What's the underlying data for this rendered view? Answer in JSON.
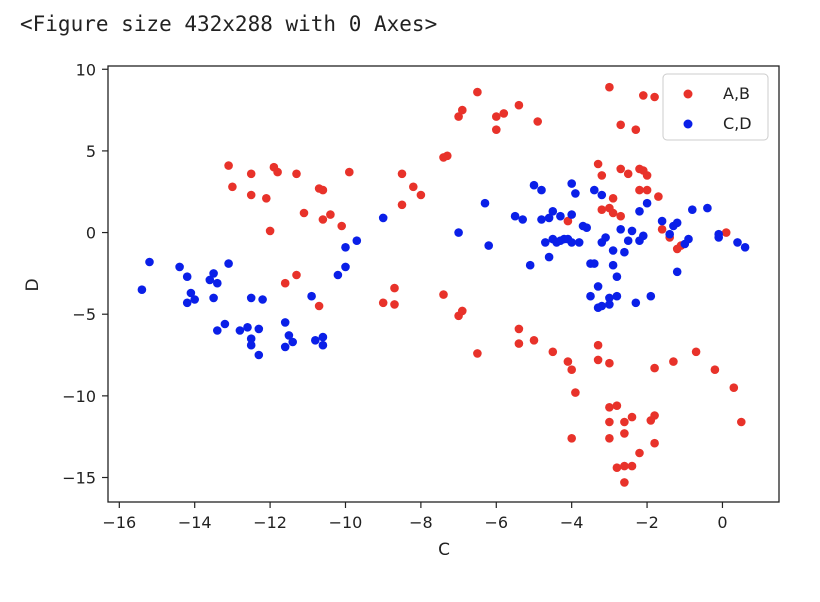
{
  "header_text": "<Figure size 432x288 with 0 Axes>",
  "chart_data": {
    "type": "scatter",
    "xlabel": "C",
    "ylabel": "D",
    "xlim": [
      -16.3,
      1.5
    ],
    "ylim": [
      -16.5,
      10.2
    ],
    "xticks": [
      -16,
      -14,
      -12,
      -10,
      -8,
      -6,
      -4,
      -2,
      0
    ],
    "yticks": [
      10,
      5,
      0,
      -5,
      -10,
      -15
    ],
    "xtick_labels": [
      "−16",
      "−14",
      "−12",
      "−10",
      "−8",
      "−6",
      "−4",
      "−2",
      "0"
    ],
    "ytick_labels": [
      "10",
      "5",
      "0",
      "−5",
      "−10",
      "−15"
    ],
    "grid": false,
    "legend_position": "top-right",
    "series": [
      {
        "name": "A,B",
        "color": "#e8322a",
        "points": [
          [
            -13.1,
            4.1
          ],
          [
            -13.0,
            2.8
          ],
          [
            -12.5,
            3.6
          ],
          [
            -12.5,
            2.3
          ],
          [
            -12.1,
            2.1
          ],
          [
            -12.0,
            0.1
          ],
          [
            -11.9,
            4.0
          ],
          [
            -11.8,
            3.7
          ],
          [
            -11.3,
            3.6
          ],
          [
            -11.1,
            1.2
          ],
          [
            -10.7,
            2.7
          ],
          [
            -10.6,
            2.6
          ],
          [
            -10.6,
            0.8
          ],
          [
            -10.4,
            1.1
          ],
          [
            -10.1,
            0.4
          ],
          [
            -9.9,
            3.7
          ],
          [
            -11.6,
            -3.1
          ],
          [
            -11.3,
            -2.6
          ],
          [
            -10.7,
            -4.5
          ],
          [
            -9.0,
            -4.3
          ],
          [
            -8.7,
            -4.4
          ],
          [
            -8.7,
            -3.4
          ],
          [
            -8.5,
            3.6
          ],
          [
            -8.2,
            2.8
          ],
          [
            -8.0,
            2.3
          ],
          [
            -8.5,
            1.7
          ],
          [
            -7.4,
            4.6
          ],
          [
            -7.3,
            4.7
          ],
          [
            -7.0,
            7.1
          ],
          [
            -6.9,
            7.5
          ],
          [
            -6.5,
            8.6
          ],
          [
            -6.0,
            6.3
          ],
          [
            -6.0,
            7.1
          ],
          [
            -5.8,
            7.3
          ],
          [
            -5.4,
            7.8
          ],
          [
            -4.9,
            6.8
          ],
          [
            -7.4,
            -3.8
          ],
          [
            -7.0,
            -5.1
          ],
          [
            -6.9,
            -4.8
          ],
          [
            -6.5,
            -7.4
          ],
          [
            -5.4,
            -5.9
          ],
          [
            -5.4,
            -6.8
          ],
          [
            -5.0,
            -6.6
          ],
          [
            -4.5,
            -7.3
          ],
          [
            -4.1,
            -7.9
          ],
          [
            -4.0,
            -8.4
          ],
          [
            -3.9,
            -9.8
          ],
          [
            -4.0,
            -12.6
          ],
          [
            -3.3,
            -6.9
          ],
          [
            -3.3,
            -7.8
          ],
          [
            -3.0,
            -8.0
          ],
          [
            -3.0,
            -10.7
          ],
          [
            -3.0,
            -11.6
          ],
          [
            -3.0,
            -12.6
          ],
          [
            -2.8,
            -10.6
          ],
          [
            -2.6,
            -11.6
          ],
          [
            -2.6,
            -12.3
          ],
          [
            -2.4,
            -11.3
          ],
          [
            -2.8,
            -14.4
          ],
          [
            -2.6,
            -14.3
          ],
          [
            -2.4,
            -14.3
          ],
          [
            -2.6,
            -15.3
          ],
          [
            -2.2,
            -13.5
          ],
          [
            -1.9,
            -11.5
          ],
          [
            -1.8,
            -11.2
          ],
          [
            -1.8,
            -12.9
          ],
          [
            -1.8,
            -8.3
          ],
          [
            -1.3,
            -7.9
          ],
          [
            -0.7,
            -7.3
          ],
          [
            -0.2,
            -8.4
          ],
          [
            0.3,
            -9.5
          ],
          [
            0.5,
            -11.6
          ],
          [
            -3.0,
            8.9
          ],
          [
            -2.7,
            6.6
          ],
          [
            -2.3,
            6.3
          ],
          [
            -2.1,
            8.4
          ],
          [
            -1.8,
            8.3
          ],
          [
            -3.3,
            4.2
          ],
          [
            -3.2,
            3.5
          ],
          [
            -2.9,
            2.1
          ],
          [
            -3.2,
            1.4
          ],
          [
            -2.9,
            1.2
          ],
          [
            -2.7,
            3.9
          ],
          [
            -2.5,
            3.6
          ],
          [
            -2.2,
            3.9
          ],
          [
            -2.1,
            3.8
          ],
          [
            -2.0,
            2.6
          ],
          [
            -1.7,
            2.2
          ],
          [
            -1.6,
            0.2
          ],
          [
            -1.4,
            -0.3
          ],
          [
            -1.1,
            -0.8
          ],
          [
            -1.2,
            -1.0
          ],
          [
            0.1,
            0.0
          ],
          [
            -2.7,
            1.0
          ],
          [
            -2.0,
            3.5
          ],
          [
            -4.1,
            0.7
          ],
          [
            -2.2,
            2.6
          ],
          [
            -3.0,
            1.5
          ]
        ]
      },
      {
        "name": "C,D",
        "color": "#0a1fe8",
        "points": [
          [
            -15.4,
            -3.5
          ],
          [
            -15.2,
            -1.8
          ],
          [
            -14.4,
            -2.1
          ],
          [
            -14.2,
            -2.7
          ],
          [
            -14.1,
            -3.7
          ],
          [
            -14.2,
            -4.3
          ],
          [
            -14.0,
            -4.1
          ],
          [
            -13.6,
            -2.9
          ],
          [
            -13.5,
            -2.5
          ],
          [
            -13.4,
            -3.1
          ],
          [
            -13.5,
            -4.0
          ],
          [
            -13.2,
            -5.6
          ],
          [
            -13.4,
            -6.0
          ],
          [
            -13.1,
            -1.9
          ],
          [
            -12.8,
            -6.0
          ],
          [
            -12.6,
            -5.8
          ],
          [
            -12.5,
            -6.5
          ],
          [
            -12.5,
            -6.9
          ],
          [
            -12.5,
            -4.0
          ],
          [
            -12.2,
            -4.1
          ],
          [
            -12.3,
            -5.9
          ],
          [
            -12.3,
            -7.5
          ],
          [
            -11.6,
            -5.5
          ],
          [
            -11.5,
            -6.3
          ],
          [
            -11.4,
            -6.7
          ],
          [
            -11.6,
            -7.0
          ],
          [
            -10.9,
            -3.9
          ],
          [
            -10.8,
            -6.6
          ],
          [
            -10.6,
            -6.4
          ],
          [
            -10.6,
            -6.9
          ],
          [
            -10.2,
            -2.6
          ],
          [
            -10.0,
            -2.1
          ],
          [
            -10.0,
            -0.9
          ],
          [
            -9.7,
            -0.5
          ],
          [
            -9.0,
            0.9
          ],
          [
            -7.0,
            0.0
          ],
          [
            -6.3,
            1.8
          ],
          [
            -6.2,
            -0.8
          ],
          [
            -5.5,
            1.0
          ],
          [
            -5.3,
            0.8
          ],
          [
            -5.0,
            2.9
          ],
          [
            -4.8,
            2.6
          ],
          [
            -4.8,
            0.8
          ],
          [
            -4.6,
            0.9
          ],
          [
            -4.5,
            1.3
          ],
          [
            -4.7,
            -0.6
          ],
          [
            -4.5,
            -0.4
          ],
          [
            -4.4,
            -0.6
          ],
          [
            -4.6,
            -1.5
          ],
          [
            -5.1,
            -2.0
          ],
          [
            -4.2,
            -0.4
          ],
          [
            -4.1,
            -0.4
          ],
          [
            -4.0,
            -0.6
          ],
          [
            -3.8,
            -0.6
          ],
          [
            -4.0,
            3.0
          ],
          [
            -3.9,
            2.4
          ],
          [
            -4.0,
            1.1
          ],
          [
            -3.7,
            0.4
          ],
          [
            -3.4,
            2.6
          ],
          [
            -3.2,
            2.3
          ],
          [
            -3.5,
            -1.9
          ],
          [
            -3.4,
            -1.9
          ],
          [
            -3.2,
            -0.6
          ],
          [
            -2.9,
            -1.1
          ],
          [
            -2.6,
            -1.2
          ],
          [
            -2.9,
            -2.0
          ],
          [
            -2.8,
            -2.7
          ],
          [
            -3.0,
            -4.0
          ],
          [
            -3.3,
            -3.3
          ],
          [
            -3.5,
            -3.9
          ],
          [
            -3.0,
            -4.4
          ],
          [
            -2.8,
            -3.9
          ],
          [
            -3.2,
            -4.5
          ],
          [
            -3.3,
            -4.6
          ],
          [
            -2.3,
            -4.3
          ],
          [
            -2.2,
            -0.5
          ],
          [
            -2.2,
            1.3
          ],
          [
            -2.0,
            1.8
          ],
          [
            -2.1,
            -0.2
          ],
          [
            -1.9,
            -3.9
          ],
          [
            -1.6,
            0.7
          ],
          [
            -1.4,
            -0.1
          ],
          [
            -1.3,
            0.4
          ],
          [
            -1.2,
            0.6
          ],
          [
            -0.9,
            -0.4
          ],
          [
            -1.0,
            -0.7
          ],
          [
            -1.2,
            -2.4
          ],
          [
            -0.8,
            1.4
          ],
          [
            -0.4,
            1.5
          ],
          [
            -0.1,
            -0.1
          ],
          [
            -0.1,
            -0.3
          ],
          [
            0.4,
            -0.6
          ],
          [
            0.6,
            -0.9
          ],
          [
            -2.7,
            0.2
          ],
          [
            -2.5,
            -0.5
          ],
          [
            -4.3,
            -0.5
          ],
          [
            -3.1,
            -0.3
          ],
          [
            -3.6,
            0.3
          ],
          [
            -4.3,
            1.0
          ],
          [
            -2.4,
            0.1
          ]
        ]
      }
    ]
  }
}
